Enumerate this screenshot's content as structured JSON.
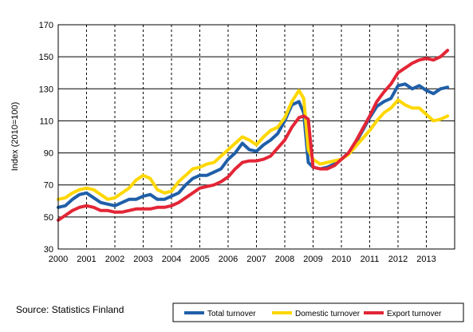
{
  "source": "Source: Statistics Finland",
  "chart_data": {
    "type": "line",
    "xlabel": "",
    "ylabel": "Index (2010=100)",
    "ylim": [
      30,
      170
    ],
    "yticks": [
      30,
      50,
      70,
      90,
      110,
      130,
      150,
      170
    ],
    "xlim": [
      2000.0,
      2014.0
    ],
    "xticks": [
      "2000",
      "2001",
      "2002",
      "2003",
      "2004",
      "2005",
      "2006",
      "2007",
      "2008",
      "2009",
      "2010",
      "2011",
      "2012",
      "2013"
    ],
    "grid": {
      "horizontal": "solid",
      "vertical": "dashed"
    },
    "legend_position": "bottom-right",
    "series": [
      {
        "name": "Total turnover",
        "color": "#1f5fa8",
        "x": [
          2000.0,
          2000.25,
          2000.5,
          2000.75,
          2001.0,
          2001.25,
          2001.5,
          2001.75,
          2002.0,
          2002.25,
          2002.5,
          2002.75,
          2003.0,
          2003.25,
          2003.5,
          2003.75,
          2004.0,
          2004.25,
          2004.5,
          2004.75,
          2005.0,
          2005.25,
          2005.5,
          2005.75,
          2006.0,
          2006.25,
          2006.5,
          2006.75,
          2007.0,
          2007.25,
          2007.5,
          2007.75,
          2008.0,
          2008.25,
          2008.5,
          2008.67,
          2008.83,
          2009.0,
          2009.25,
          2009.5,
          2009.75,
          2010.0,
          2010.25,
          2010.5,
          2010.75,
          2011.0,
          2011.25,
          2011.5,
          2011.75,
          2012.0,
          2012.25,
          2012.5,
          2012.75,
          2013.0,
          2013.25,
          2013.5,
          2013.75
        ],
        "values": [
          56,
          57,
          61,
          64,
          65,
          62,
          59,
          58,
          57,
          59,
          61,
          61,
          63,
          64,
          61,
          61,
          63,
          65,
          70,
          74,
          76,
          76,
          78,
          80,
          86,
          90,
          96,
          92,
          91,
          95,
          98,
          102,
          110,
          120,
          122,
          115,
          84,
          81,
          80,
          81,
          83,
          86,
          90,
          96,
          104,
          112,
          119,
          122,
          124,
          132,
          133,
          130,
          132,
          129,
          127,
          130,
          131
        ]
      },
      {
        "name": "Domestic turnover",
        "color": "#ffd700",
        "x": [
          2000.0,
          2000.25,
          2000.5,
          2000.75,
          2001.0,
          2001.25,
          2001.5,
          2001.75,
          2002.0,
          2002.25,
          2002.5,
          2002.75,
          2003.0,
          2003.25,
          2003.5,
          2003.75,
          2004.0,
          2004.25,
          2004.5,
          2004.75,
          2005.0,
          2005.25,
          2005.5,
          2005.75,
          2006.0,
          2006.25,
          2006.5,
          2006.75,
          2007.0,
          2007.25,
          2007.5,
          2007.75,
          2008.0,
          2008.25,
          2008.5,
          2008.67,
          2008.83,
          2009.0,
          2009.25,
          2009.5,
          2009.75,
          2010.0,
          2010.25,
          2010.5,
          2010.75,
          2011.0,
          2011.25,
          2011.5,
          2011.75,
          2012.0,
          2012.25,
          2012.5,
          2012.75,
          2013.0,
          2013.25,
          2013.5,
          2013.75
        ],
        "values": [
          61,
          62,
          65,
          67,
          68,
          67,
          64,
          61,
          62,
          65,
          68,
          73,
          76,
          74,
          67,
          65,
          66,
          72,
          76,
          80,
          81,
          83,
          84,
          88,
          92,
          96,
          100,
          98,
          95,
          100,
          104,
          106,
          112,
          122,
          129,
          124,
          92,
          86,
          83,
          84,
          85,
          86,
          89,
          94,
          99,
          104,
          110,
          115,
          118,
          123,
          120,
          118,
          118,
          114,
          110,
          111,
          113
        ]
      },
      {
        "name": "Export turnover",
        "color": "#e32636",
        "x": [
          2000.0,
          2000.25,
          2000.5,
          2000.75,
          2001.0,
          2001.25,
          2001.5,
          2001.75,
          2002.0,
          2002.25,
          2002.5,
          2002.75,
          2003.0,
          2003.25,
          2003.5,
          2003.75,
          2004.0,
          2004.25,
          2004.5,
          2004.75,
          2005.0,
          2005.25,
          2005.5,
          2005.75,
          2006.0,
          2006.25,
          2006.5,
          2006.75,
          2007.0,
          2007.25,
          2007.5,
          2007.75,
          2008.0,
          2008.25,
          2008.5,
          2008.67,
          2008.83,
          2009.0,
          2009.25,
          2009.5,
          2009.75,
          2010.0,
          2010.25,
          2010.5,
          2010.75,
          2011.0,
          2011.25,
          2011.5,
          2011.75,
          2012.0,
          2012.25,
          2012.5,
          2012.75,
          2013.0,
          2013.25,
          2013.5,
          2013.75
        ],
        "values": [
          48,
          51,
          54,
          56,
          57,
          56,
          54,
          54,
          53,
          53,
          54,
          55,
          55,
          55,
          56,
          56,
          57,
          59,
          62,
          65,
          68,
          69,
          70,
          72,
          75,
          80,
          84,
          85,
          85,
          86,
          88,
          93,
          98,
          106,
          112,
          113,
          111,
          81,
          80,
          80,
          82,
          86,
          90,
          97,
          105,
          113,
          122,
          128,
          133,
          140,
          143,
          146,
          148,
          149,
          148,
          150,
          154
        ]
      }
    ]
  }
}
